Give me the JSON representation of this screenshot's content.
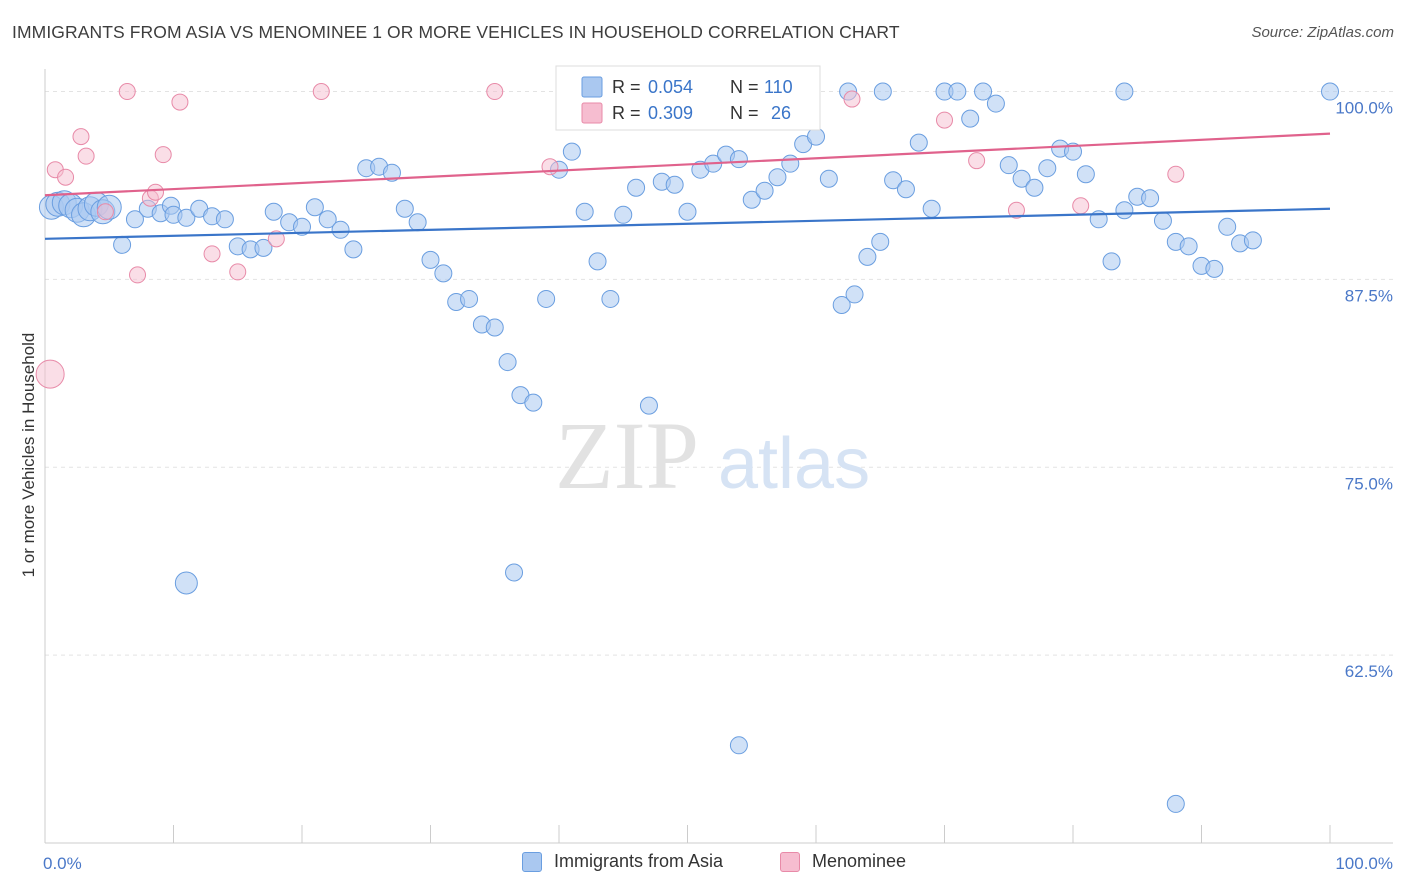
{
  "title": "IMMIGRANTS FROM ASIA VS MENOMINEE 1 OR MORE VEHICLES IN HOUSEHOLD CORRELATION CHART",
  "source": "Source: ZipAtlas.com",
  "watermark": {
    "zip": "ZIP",
    "atlas": "atlas"
  },
  "chart_data": {
    "type": "scatter",
    "ylabel": "1 or more Vehicles in Household",
    "xlim": [
      0,
      100
    ],
    "ylim": [
      50,
      101.5
    ],
    "x_tick_labels": {
      "left": "0.0%",
      "right": "100.0%"
    },
    "y_ticks": [
      {
        "value": 100,
        "label": "100.0%"
      },
      {
        "value": 87.5,
        "label": "87.5%"
      },
      {
        "value": 75,
        "label": "75.0%"
      },
      {
        "value": 62.5,
        "label": "62.5%"
      }
    ],
    "grid": true,
    "legend_top": {
      "placement": "top-center",
      "rows": [
        {
          "r_label": "R =",
          "r_value": "0.054",
          "n_label": "N =",
          "n_value": "110"
        },
        {
          "r_label": "R =",
          "r_value": "0.309",
          "n_label": "N =",
          "n_value": "26"
        }
      ]
    },
    "colors": {
      "asia_fill": "#aac8f0",
      "asia_stroke": "#6a9ee0",
      "asia_line": "#3a75c9",
      "men_fill": "#f6bdd0",
      "men_stroke": "#e88aa8",
      "men_line": "#e0628c",
      "accent_text": "#3a75c9"
    },
    "series": [
      {
        "name": "Immigrants from Asia",
        "trend": {
          "x": [
            0,
            100
          ],
          "y": [
            90.2,
            92.2
          ]
        },
        "points": [
          [
            0.5,
            92.3
          ],
          [
            1,
            92.5
          ],
          [
            1.5,
            92.6
          ],
          [
            2,
            92.4
          ],
          [
            2.5,
            92.1
          ],
          [
            3,
            91.8
          ],
          [
            3.5,
            92.2
          ],
          [
            4,
            92.5
          ],
          [
            4.5,
            92.0
          ],
          [
            5,
            92.3
          ],
          [
            6,
            89.8
          ],
          [
            7,
            91.5
          ],
          [
            8,
            92.2
          ],
          [
            9,
            91.9
          ],
          [
            9.8,
            92.4
          ],
          [
            10,
            91.8
          ],
          [
            11,
            91.6
          ],
          [
            12,
            92.2
          ],
          [
            13,
            91.7
          ],
          [
            14,
            91.5
          ],
          [
            15,
            89.7
          ],
          [
            16,
            89.5
          ],
          [
            17,
            89.6
          ],
          [
            17.8,
            92.0
          ],
          [
            19,
            91.3
          ],
          [
            20,
            91.0
          ],
          [
            21,
            92.3
          ],
          [
            22,
            91.5
          ],
          [
            23,
            90.8
          ],
          [
            24,
            89.5
          ],
          [
            25,
            94.9
          ],
          [
            26,
            95.0
          ],
          [
            27,
            94.6
          ],
          [
            28,
            92.2
          ],
          [
            29,
            91.3
          ],
          [
            30,
            88.8
          ],
          [
            31,
            87.9
          ],
          [
            32,
            86.0
          ],
          [
            33,
            86.2
          ],
          [
            34,
            84.5
          ],
          [
            35,
            84.3
          ],
          [
            36,
            82.0
          ],
          [
            37,
            79.8
          ],
          [
            38,
            79.3
          ],
          [
            39,
            86.2
          ],
          [
            40,
            94.8
          ],
          [
            41,
            96.0
          ],
          [
            42,
            92.0
          ],
          [
            43,
            88.7
          ],
          [
            44,
            86.2
          ],
          [
            45,
            91.8
          ],
          [
            46,
            93.6
          ],
          [
            47,
            79.1
          ],
          [
            48,
            94.0
          ],
          [
            49,
            93.8
          ],
          [
            50,
            92.0
          ],
          [
            51,
            94.8
          ],
          [
            52,
            95.2
          ],
          [
            53,
            95.8
          ],
          [
            54,
            95.5
          ],
          [
            55,
            92.8
          ],
          [
            56,
            93.4
          ],
          [
            57,
            94.3
          ],
          [
            58,
            95.2
          ],
          [
            59,
            96.5
          ],
          [
            60,
            97.0
          ],
          [
            61,
            94.2
          ],
          [
            62,
            85.8
          ],
          [
            63,
            86.5
          ],
          [
            64,
            89.0
          ],
          [
            65,
            90.0
          ],
          [
            66,
            94.1
          ],
          [
            67,
            93.5
          ],
          [
            68,
            96.6
          ],
          [
            69,
            92.2
          ],
          [
            70,
            100.0
          ],
          [
            71,
            100.0
          ],
          [
            72,
            98.2
          ],
          [
            73,
            100.0
          ],
          [
            74,
            99.2
          ],
          [
            75,
            95.1
          ],
          [
            76,
            94.2
          ],
          [
            77,
            93.6
          ],
          [
            78,
            94.9
          ],
          [
            79,
            96.2
          ],
          [
            80,
            96.0
          ],
          [
            81,
            94.5
          ],
          [
            82,
            91.5
          ],
          [
            83,
            88.7
          ],
          [
            84,
            92.1
          ],
          [
            85,
            93.0
          ],
          [
            86,
            92.9
          ],
          [
            87,
            91.4
          ],
          [
            88,
            90.0
          ],
          [
            89,
            89.7
          ],
          [
            90,
            88.4
          ],
          [
            91,
            88.2
          ],
          [
            92,
            91.0
          ],
          [
            93,
            89.9
          ],
          [
            94,
            90.1
          ],
          [
            11,
            67.3
          ],
          [
            36.5,
            68.0
          ],
          [
            54,
            56.5
          ],
          [
            88,
            52.6
          ],
          [
            65.2,
            100.0
          ],
          [
            62.5,
            100.0
          ],
          [
            50.5,
            100.0
          ],
          [
            84,
            100.0
          ],
          [
            100,
            100.0
          ],
          [
            56.5,
            100.0
          ]
        ]
      },
      {
        "name": "Menominee",
        "trend": {
          "x": [
            0,
            100
          ],
          "y": [
            93.1,
            97.2
          ]
        },
        "points": [
          [
            0.4,
            81.2
          ],
          [
            0.8,
            94.8
          ],
          [
            1.6,
            94.3
          ],
          [
            2.8,
            97.0
          ],
          [
            3.2,
            95.7
          ],
          [
            4.7,
            92.0
          ],
          [
            6.4,
            100.0
          ],
          [
            7.2,
            87.8
          ],
          [
            8.2,
            92.9
          ],
          [
            8.6,
            93.3
          ],
          [
            9.2,
            95.8
          ],
          [
            10.5,
            99.3
          ],
          [
            13,
            89.2
          ],
          [
            15,
            88.0
          ],
          [
            18,
            90.2
          ],
          [
            21.5,
            100.0
          ],
          [
            35,
            100.0
          ],
          [
            39.3,
            95.0
          ],
          [
            42,
            100.0
          ],
          [
            47.6,
            100.0
          ],
          [
            62.8,
            99.5
          ],
          [
            70,
            98.1
          ],
          [
            72.5,
            95.4
          ],
          [
            75.6,
            92.1
          ],
          [
            80.6,
            92.4
          ],
          [
            88,
            94.5
          ]
        ]
      }
    ]
  }
}
